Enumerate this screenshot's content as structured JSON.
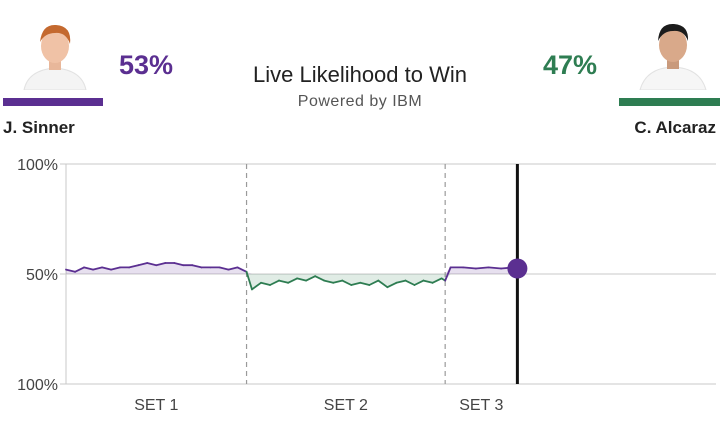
{
  "header": {
    "title": "Live Likelihood to Win",
    "subtitle": "Powered by IBM"
  },
  "players": {
    "left": {
      "name": "J. Sinner",
      "percent": "53%",
      "color": "#5b2f91"
    },
    "right": {
      "name": "C. Alcaraz",
      "percent": "47%",
      "color": "#2e7d52"
    }
  },
  "chart_data": {
    "type": "area",
    "ylim": [
      0,
      100
    ],
    "y_ticks": [
      {
        "label": "100%",
        "value": 100
      },
      {
        "label": "50%",
        "value": 50
      },
      {
        "label": "100%",
        "value": 0
      }
    ],
    "grid": true,
    "sets": [
      {
        "label": "SET 1",
        "start": 0,
        "end": 1
      },
      {
        "label": "SET 2",
        "start": 1,
        "end": 2.1
      },
      {
        "label": "SET 3",
        "start": 2.1,
        "end": 2.5
      }
    ],
    "x_max": 3.6,
    "current_x": 2.5,
    "current_value": 52.5,
    "series": [
      {
        "x": [
          0,
          0.05,
          0.1,
          0.15,
          0.2,
          0.25,
          0.3,
          0.35,
          0.4,
          0.45,
          0.5,
          0.55,
          0.6,
          0.65,
          0.7,
          0.75,
          0.8,
          0.85,
          0.9,
          0.95,
          1.0,
          1.03,
          1.08,
          1.13,
          1.18,
          1.23,
          1.28,
          1.33,
          1.38,
          1.43,
          1.48,
          1.53,
          1.58,
          1.63,
          1.68,
          1.73,
          1.78,
          1.83,
          1.88,
          1.93,
          1.98,
          2.03,
          2.08,
          2.1,
          2.13,
          2.2,
          2.27,
          2.34,
          2.41,
          2.48,
          2.5
        ],
        "values": [
          52,
          51,
          53,
          52,
          53,
          52,
          53,
          53,
          54,
          55,
          54,
          55,
          55,
          54,
          54,
          53,
          53,
          53,
          52,
          53,
          51,
          43,
          46,
          45,
          47,
          46,
          48,
          47,
          49,
          47,
          46,
          47,
          45,
          46,
          45,
          47,
          44,
          46,
          47,
          45,
          47,
          46,
          48,
          47,
          53,
          53,
          52.5,
          53,
          52.5,
          53,
          52.5
        ]
      }
    ]
  }
}
